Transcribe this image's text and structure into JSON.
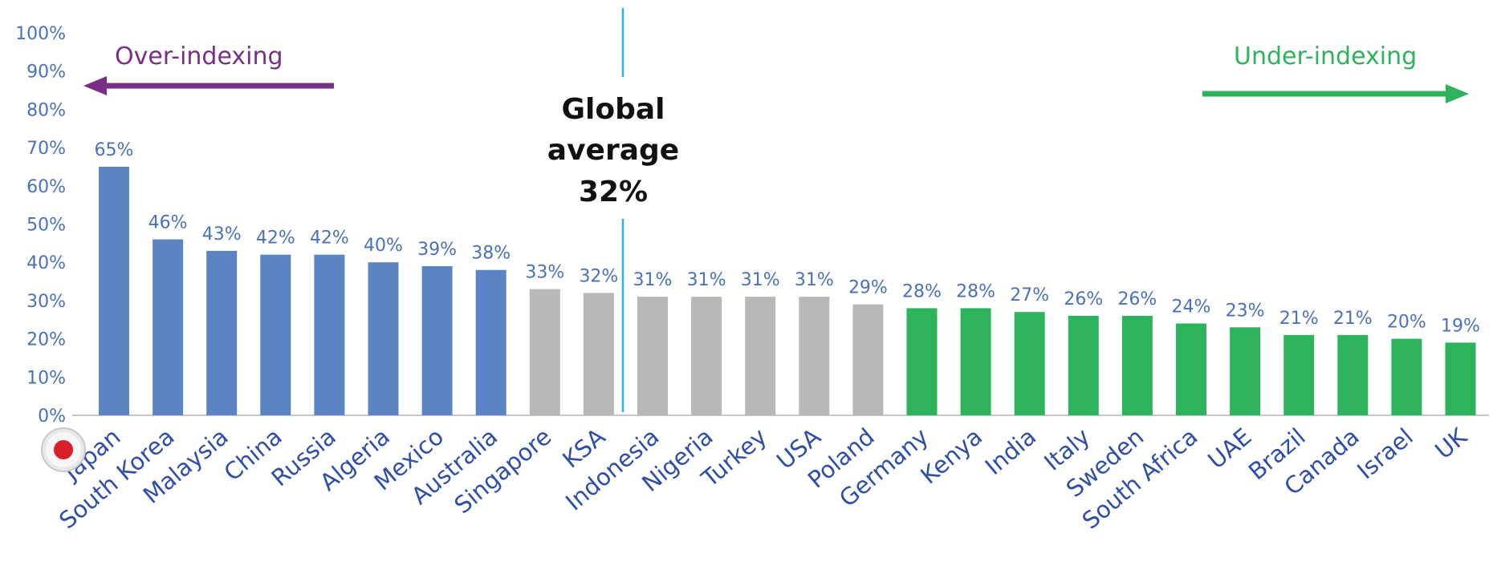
{
  "chart_data": {
    "type": "bar",
    "categories": [
      "Japan",
      "South Korea",
      "Malaysia",
      "China",
      "Russia",
      "Algeria",
      "Mexico",
      "Australia",
      "Singapore",
      "KSA",
      "Indonesia",
      "Nigeria",
      "Turkey",
      "USA",
      "Poland",
      "Germany",
      "Kenya",
      "India",
      "Italy",
      "Sweden",
      "South Africa",
      "UAE",
      "Brazil",
      "Canada",
      "Israel",
      "UK"
    ],
    "values": [
      65,
      46,
      43,
      42,
      42,
      40,
      39,
      38,
      33,
      32,
      31,
      31,
      31,
      31,
      29,
      28,
      28,
      27,
      26,
      26,
      24,
      23,
      21,
      21,
      20,
      19
    ],
    "value_labels": [
      "65%",
      "46%",
      "43%",
      "42%",
      "42%",
      "40%",
      "39%",
      "38%",
      "33%",
      "32%",
      "31%",
      "31%",
      "31%",
      "31%",
      "29%",
      "28%",
      "28%",
      "27%",
      "26%",
      "26%",
      "24%",
      "23%",
      "21%",
      "21%",
      "20%",
      "19%"
    ],
    "bar_groups": [
      "over",
      "over",
      "over",
      "over",
      "over",
      "over",
      "over",
      "over",
      "average",
      "average",
      "average",
      "average",
      "average",
      "average",
      "average",
      "under",
      "under",
      "under",
      "under",
      "under",
      "under",
      "under",
      "under",
      "under",
      "under",
      "under"
    ],
    "colors": {
      "over": "#5b84c4",
      "average": "#b8b8b8",
      "under": "#2db35c",
      "reference_line": "#29b6e0",
      "over_annotation": "#7a2f86",
      "under_annotation": "#2db35c",
      "tick_text": "#4a72b8",
      "category_text": "#2f4fa6"
    },
    "ylim": [
      0,
      100
    ],
    "yticks": [
      "0%",
      "10%",
      "20%",
      "30%",
      "40%",
      "50%",
      "60%",
      "70%",
      "80%",
      "90%",
      "100%"
    ],
    "grid": false,
    "reference_line": {
      "value": 32,
      "label_lines": [
        "Global",
        "average",
        "32%"
      ]
    },
    "annotations": {
      "left": "Over-indexing",
      "right": "Under-indexing"
    },
    "icons": [
      "japan-flag-icon"
    ],
    "xlabel": "",
    "ylabel": "",
    "title": ""
  }
}
